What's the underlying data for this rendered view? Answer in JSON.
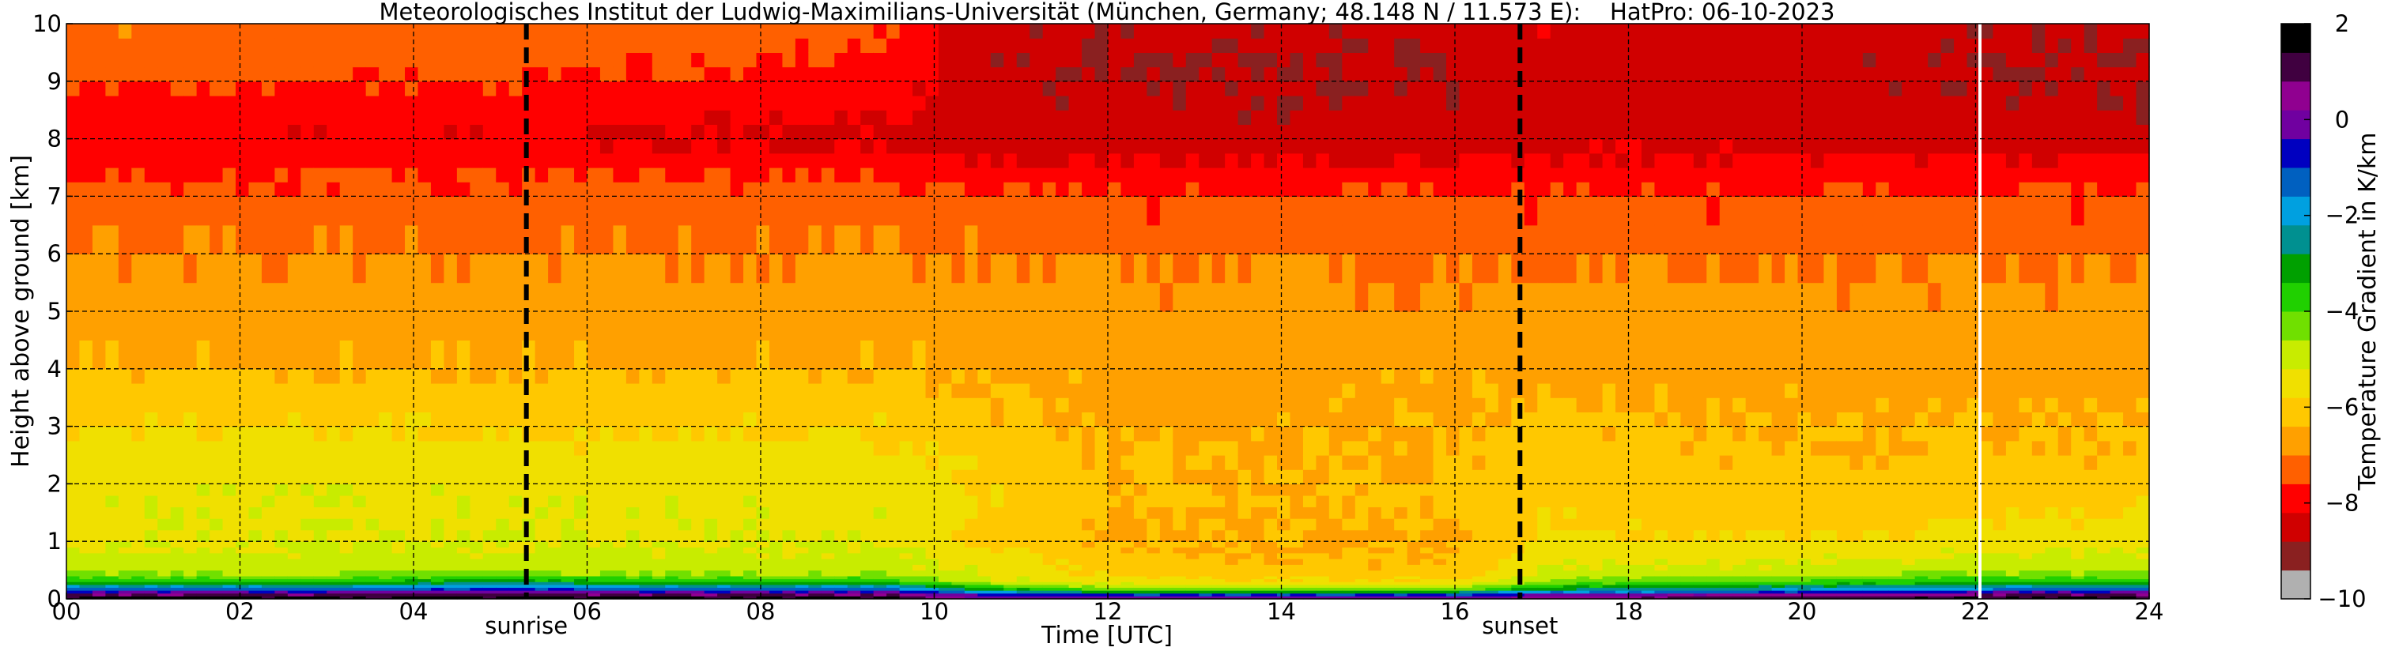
{
  "chart_data": {
    "type": "heatmap",
    "title": "Meteorologisches Institut der Ludwig-Maximilians-Universität (München, Germany; 48.148 N / 11.573 E):    HatPro: 06-10-2023",
    "xlabel": "Time [UTC]",
    "ylabel": "Height above ground [km]",
    "xlim": [
      0,
      24
    ],
    "ylim": [
      0,
      10
    ],
    "xticks": [
      "00",
      "02",
      "04",
      "06",
      "08",
      "10",
      "12",
      "14",
      "16",
      "18",
      "20",
      "22",
      "24"
    ],
    "yticks": [
      "0",
      "1",
      "2",
      "3",
      "4",
      "5",
      "6",
      "7",
      "8",
      "9",
      "10"
    ],
    "grid": true,
    "events": [
      {
        "label": "sunrise",
        "time": 5.3
      },
      {
        "label": "sunset",
        "time": 16.75
      }
    ],
    "data_gap_time": 22.05,
    "colorbar": {
      "label": "Temperature Gradient in K/km",
      "range": [
        -10,
        2
      ],
      "ticks": [
        "2",
        "0",
        "−2",
        "−4",
        "−6",
        "−8",
        "−10"
      ],
      "colors": [
        "#b0b0b0",
        "#8a2020",
        "#d00000",
        "#ff0000",
        "#ff6000",
        "#ffa000",
        "#ffc800",
        "#f0e000",
        "#c8ec00",
        "#70e000",
        "#20d000",
        "#00a000",
        "#009090",
        "#00a0e0",
        "#0060c0",
        "#0000c0",
        "#7000a0",
        "#900090",
        "#400040",
        "#000000"
      ]
    },
    "profile": {
      "heights_km": [
        0.05,
        0.15,
        0.3,
        0.5,
        0.7,
        0.9,
        1.2,
        1.6,
        2.0,
        2.5,
        3.0,
        3.4,
        3.8,
        4.2,
        4.6,
        5.0,
        5.5,
        6.0,
        6.5,
        7.0,
        7.4,
        7.8,
        8.2,
        8.6,
        9.0,
        9.4,
        9.8
      ],
      "times_utc": [
        0,
        3,
        5,
        7,
        9.5,
        10.5,
        12,
        14,
        16,
        17,
        19,
        21,
        22.5,
        24
      ],
      "gradient_k_per_km": [
        [
          1.5,
          -1.0,
          -3.5,
          -5.0,
          -5.0,
          -5.2,
          -5.3,
          -5.3,
          -5.3,
          -5.5,
          -5.8,
          -6.0,
          -6.2,
          -6.4,
          -6.6,
          -6.7,
          -6.8,
          -7.0,
          -7.2,
          -7.4,
          -7.6,
          -8.0,
          -8.0,
          -7.8,
          -7.5,
          -7.3,
          -7.1
        ],
        [
          1.5,
          -1.0,
          -3.5,
          -5.0,
          -5.0,
          -5.2,
          -5.3,
          -5.3,
          -5.3,
          -5.5,
          -5.8,
          -6.1,
          -6.3,
          -6.5,
          -6.6,
          -6.7,
          -6.8,
          -7.0,
          -7.2,
          -7.4,
          -7.6,
          -8.0,
          -8.1,
          -7.9,
          -7.6,
          -7.4,
          -7.2
        ],
        [
          1.5,
          -0.5,
          -3.0,
          -4.8,
          -5.0,
          -5.2,
          -5.3,
          -5.3,
          -5.4,
          -5.6,
          -5.9,
          -6.1,
          -6.3,
          -6.5,
          -6.6,
          -6.7,
          -6.8,
          -7.0,
          -7.2,
          -7.4,
          -7.6,
          -8.0,
          -8.1,
          -7.8,
          -7.6,
          -7.4,
          -7.3
        ],
        [
          1.5,
          -1.0,
          -3.5,
          -5.0,
          -5.0,
          -5.2,
          -5.3,
          -5.3,
          -5.4,
          -5.6,
          -5.9,
          -6.1,
          -6.3,
          -6.5,
          -6.6,
          -6.7,
          -6.8,
          -7.0,
          -7.2,
          -7.4,
          -7.6,
          -8.1,
          -8.2,
          -7.9,
          -7.7,
          -7.5,
          -7.3
        ],
        [
          1.5,
          -1.0,
          -3.5,
          -5.0,
          -5.0,
          -5.2,
          -5.3,
          -5.3,
          -5.4,
          -5.6,
          -5.9,
          -6.1,
          -6.3,
          -6.5,
          -6.6,
          -6.7,
          -6.8,
          -7.0,
          -7.2,
          -7.4,
          -7.7,
          -8.2,
          -8.3,
          -8.0,
          -7.9,
          -7.7,
          -7.5
        ],
        [
          0.0,
          -2.5,
          -5.0,
          -5.3,
          -5.5,
          -5.8,
          -6.0,
          -5.8,
          -5.8,
          -6.0,
          -6.2,
          -6.3,
          -6.4,
          -6.5,
          -6.6,
          -6.7,
          -6.8,
          -7.0,
          -7.2,
          -7.5,
          -7.8,
          -8.4,
          -8.5,
          -8.6,
          -8.7,
          -8.7,
          -8.6
        ],
        [
          0.0,
          -4.0,
          -5.5,
          -6.0,
          -6.2,
          -6.3,
          -6.4,
          -6.3,
          -6.3,
          -6.4,
          -6.5,
          -6.5,
          -6.6,
          -6.6,
          -6.7,
          -6.8,
          -6.9,
          -7.1,
          -7.3,
          -7.6,
          -7.9,
          -8.5,
          -8.6,
          -8.7,
          -8.8,
          -8.8,
          -8.7
        ],
        [
          0.0,
          -4.0,
          -5.8,
          -6.2,
          -6.4,
          -6.5,
          -6.5,
          -6.4,
          -6.4,
          -6.5,
          -6.5,
          -6.6,
          -6.6,
          -6.7,
          -6.7,
          -6.8,
          -6.9,
          -7.1,
          -7.3,
          -7.6,
          -7.9,
          -8.5,
          -8.6,
          -8.7,
          -8.8,
          -8.8,
          -8.7
        ],
        [
          0.0,
          -4.0,
          -5.8,
          -6.2,
          -6.3,
          -6.4,
          -6.4,
          -6.3,
          -6.3,
          -6.4,
          -6.4,
          -6.5,
          -6.5,
          -6.6,
          -6.7,
          -6.8,
          -6.9,
          -7.1,
          -7.3,
          -7.6,
          -7.9,
          -8.5,
          -8.6,
          -8.7,
          -8.7,
          -8.7,
          -8.6
        ],
        [
          0.5,
          -2.5,
          -4.5,
          -5.2,
          -5.4,
          -5.6,
          -5.8,
          -5.9,
          -6.0,
          -6.1,
          -6.3,
          -6.4,
          -6.5,
          -6.6,
          -6.7,
          -6.8,
          -6.9,
          -7.1,
          -7.3,
          -7.6,
          -7.8,
          -8.3,
          -8.4,
          -8.4,
          -8.4,
          -8.4,
          -8.3
        ],
        [
          1.0,
          -2.0,
          -4.0,
          -5.0,
          -5.3,
          -5.6,
          -5.9,
          -6.1,
          -6.2,
          -6.3,
          -6.4,
          -6.5,
          -6.6,
          -6.7,
          -6.7,
          -6.8,
          -6.9,
          -7.1,
          -7.3,
          -7.6,
          -7.8,
          -8.3,
          -8.4,
          -8.5,
          -8.5,
          -8.5,
          -8.4
        ],
        [
          1.2,
          -1.5,
          -3.8,
          -4.9,
          -5.2,
          -5.5,
          -5.8,
          -6.1,
          -6.2,
          -6.3,
          -6.4,
          -6.5,
          -6.6,
          -6.6,
          -6.7,
          -6.8,
          -6.9,
          -7.1,
          -7.3,
          -7.6,
          -7.8,
          -8.4,
          -8.5,
          -8.6,
          -8.7,
          -8.7,
          -8.6
        ],
        [
          1.5,
          -1.0,
          -3.5,
          -4.8,
          -5.0,
          -5.3,
          -5.6,
          -5.9,
          -6.1,
          -6.3,
          -6.4,
          -6.5,
          -6.6,
          -6.6,
          -6.7,
          -6.8,
          -6.9,
          -7.1,
          -7.3,
          -7.6,
          -7.8,
          -8.4,
          -8.6,
          -8.7,
          -8.8,
          -8.8,
          -8.7
        ],
        [
          1.5,
          -1.0,
          -3.5,
          -4.8,
          -5.0,
          -5.3,
          -5.6,
          -5.9,
          -6.1,
          -6.3,
          -6.4,
          -6.5,
          -6.6,
          -6.6,
          -6.7,
          -6.8,
          -6.9,
          -7.1,
          -7.3,
          -7.6,
          -7.8,
          -8.4,
          -8.6,
          -8.7,
          -8.8,
          -8.8,
          -8.7
        ]
      ]
    }
  }
}
